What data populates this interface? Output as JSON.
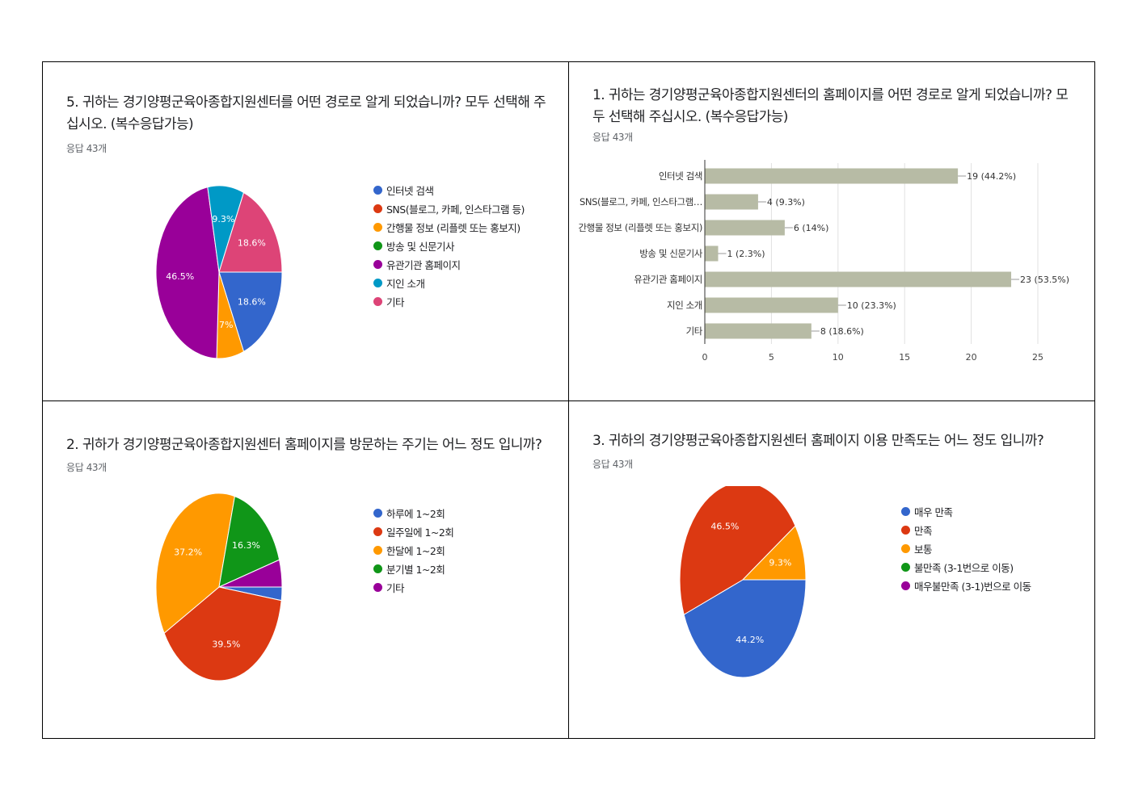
{
  "chart_data": [
    {
      "type": "pie",
      "title": "5. 귀하는 경기양평군육아종합지원센터를 어떤 경로로 알게 되었습니까? 모두 선택해 주십시오. (복수응답가능)",
      "subtitle": "응답 43개",
      "categories": [
        "인터넷 검색",
        "SNS(블로그, 카페, 인스타그램 등)",
        "간행물 정보 (리플렛 또는 홍보지)",
        "방송 및 신문기사",
        "유관기관 홈페이지",
        "지인 소개",
        "기타"
      ],
      "values": [
        18.6,
        0,
        7.0,
        0,
        46.5,
        9.3,
        18.6
      ],
      "labels": [
        "18.6%",
        "",
        "7%",
        "",
        "46.5%",
        "9.3%",
        "18.6%"
      ],
      "colors": [
        "#3366cc",
        "#dc3912",
        "#ff9900",
        "#109618",
        "#990099",
        "#0099c6",
        "#dd4477"
      ],
      "legend": "right"
    },
    {
      "type": "bar",
      "orientation": "horizontal",
      "title": "1. 귀하는 경기양평군육아종합지원센터의 홈페이지를 어떤 경로로 알게 되었습니까? 모두 선택해 주십시오. (복수응답가능)",
      "subtitle": "응답 43개",
      "categories": [
        "인터넷 검색",
        "SNS(블로그, 카페, 인스타그램…",
        "간행물 정보 (리플렛 또는 홍보지)",
        "방송 및 신문기사",
        "유관기관 홈페이지",
        "지인 소개",
        "기타"
      ],
      "values": [
        19,
        4,
        6,
        1,
        23,
        10,
        8
      ],
      "labels": [
        "19 (44.2%)",
        "4 (9.3%)",
        "6 (14%)",
        "1 (2.3%)",
        "23 (53.5%)",
        "10 (23.3%)",
        "8 (18.6%)"
      ],
      "xlim": [
        0,
        25
      ],
      "xticks": [
        "0",
        "5",
        "10",
        "15",
        "20",
        "25"
      ],
      "bar_color": "#b7bba5",
      "grid": true
    },
    {
      "type": "pie",
      "title": "2. 귀하가 경기양평군육아종합지원센터 홈페이지를 방문하는 주기는 어느 정도 입니까?",
      "subtitle": "응답 43개",
      "categories": [
        "하루에 1~2회",
        "일주일에 1~2회",
        "한달에 1~2회",
        "분기별 1~2회",
        "기타"
      ],
      "values": [
        2.3,
        39.5,
        37.2,
        16.3,
        4.7
      ],
      "labels": [
        "",
        "39.5%",
        "37.2%",
        "16.3%",
        ""
      ],
      "colors": [
        "#3366cc",
        "#dc3912",
        "#ff9900",
        "#109618",
        "#990099"
      ],
      "legend": "right"
    },
    {
      "type": "pie",
      "title": "3. 귀하의 경기양평군육아종합지원센터 홈페이지 이용 만족도는 어느 정도 입니까?",
      "subtitle": "응답 43개",
      "categories": [
        "매우 만족",
        "만족",
        "보통",
        "불만족 (3-1번으로 이동)",
        "매우불만족 (3-1)번으로 이동"
      ],
      "values": [
        44.2,
        46.5,
        9.3,
        0,
        0
      ],
      "labels": [
        "44.2%",
        "46.5%",
        "9.3%",
        "",
        ""
      ],
      "colors": [
        "#3366cc",
        "#dc3912",
        "#ff9900",
        "#109618",
        "#990099"
      ],
      "legend": "right"
    }
  ]
}
